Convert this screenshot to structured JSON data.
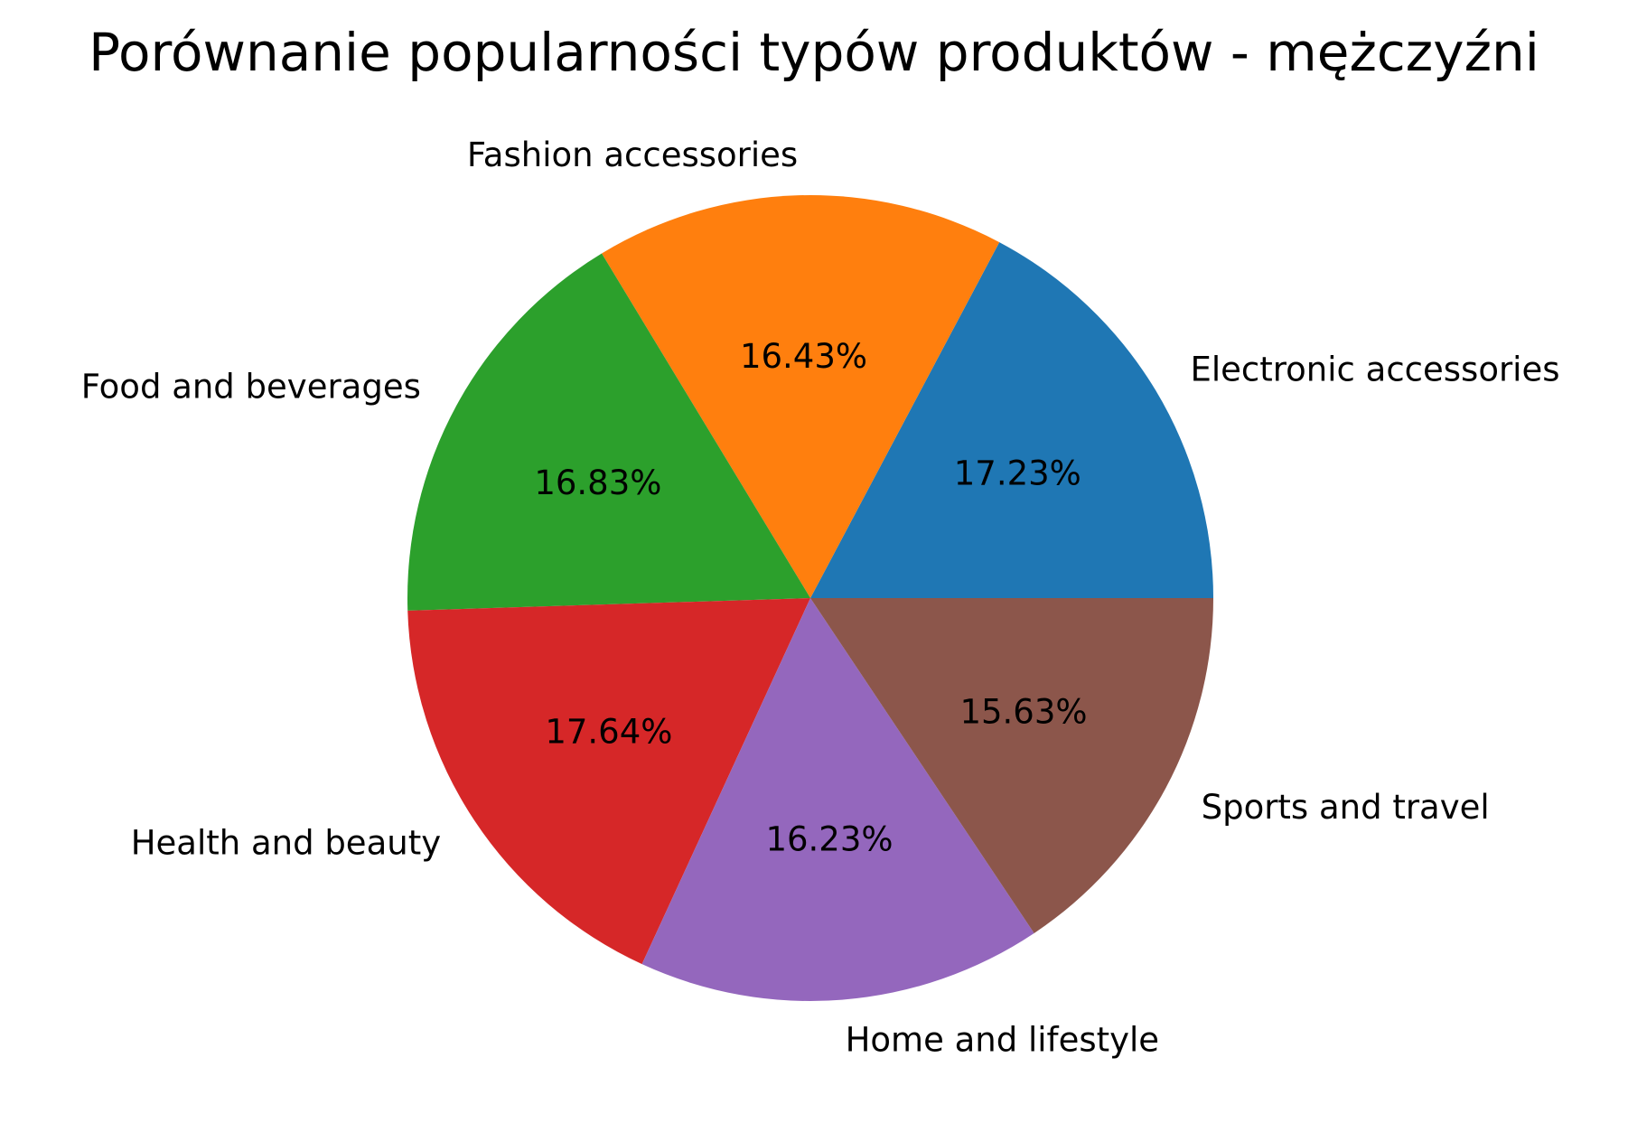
{
  "chart_data": {
    "type": "pie",
    "title": "Porównanie popularności typów produktów - mężczyźni",
    "categories": [
      "Electronic accessories",
      "Fashion accessories",
      "Food and beverages",
      "Health and beauty",
      "Home and lifestyle",
      "Sports and travel"
    ],
    "values": [
      17.23,
      16.43,
      16.83,
      17.64,
      16.23,
      15.63
    ],
    "value_labels": [
      "17.23%",
      "16.43%",
      "16.83%",
      "17.64%",
      "16.23%",
      "15.63%"
    ],
    "colors": [
      "#1f77b4",
      "#ff7f0e",
      "#2ca02c",
      "#d62728",
      "#9467bd",
      "#8c564b"
    ],
    "start_angle_deg": 0,
    "direction": "counterclockwise",
    "legend": "none"
  }
}
